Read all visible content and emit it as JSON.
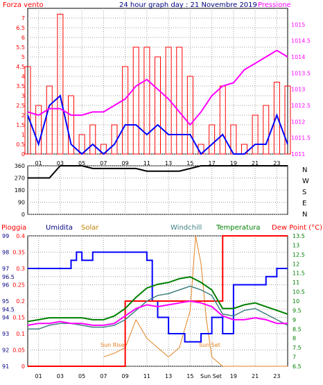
{
  "top_panel": {
    "title": "24 hour graph day : 21 Novembre 2019",
    "left_label": "Forza vento",
    "right_label": "Pressione"
  },
  "direction_panel": {
    "letters": [
      "N",
      "W",
      "S",
      "E",
      "N"
    ]
  },
  "bottom_panel": {
    "legend": {
      "pioggia": "Pioggia",
      "umidita": "Umidita",
      "solar": "Solar",
      "windchill": "Windchill",
      "temperatura": "Temperatura",
      "dewpoint": "Dew Point (°C)"
    },
    "sunrise": "Sun Rise",
    "sunset": "Sun Set"
  },
  "colors": {
    "wind_gust": "#ff0000",
    "wind_avg": "#0000ff",
    "pressure": "#ff00ff",
    "direction": "#000000",
    "rain": "#ff0000",
    "humidity": "#0000ff",
    "solar": "#e08020",
    "windchill": "#408080",
    "temperature": "#008000",
    "dewpoint": "#ff00ff",
    "grid": "#a0a0a0"
  },
  "chart_data": [
    {
      "type": "line",
      "name": "wind_pressure",
      "x_ticks": [
        "01",
        "03",
        "05",
        "07",
        "09",
        "11",
        "13",
        "15",
        "17",
        "19",
        "21",
        "23"
      ],
      "y_left": {
        "ylim": [
          0,
          7.5
        ],
        "ticks": [
          "0",
          "0.5",
          "1",
          "1.5",
          "2",
          "2.5",
          "3",
          "3.5",
          "4",
          "4.5",
          "5",
          "5.5",
          "6",
          "6.5",
          "7"
        ]
      },
      "y_right": {
        "ylim": [
          1011,
          1015.5
        ],
        "ticks": [
          "1011",
          "1011.5",
          "1012",
          "1012.5",
          "1013",
          "1013.5",
          "1014",
          "1014.5",
          "1015"
        ]
      },
      "series": [
        {
          "key": "gust",
          "x": [
            0,
            1,
            2,
            3,
            4,
            5,
            6,
            7,
            8,
            9,
            10,
            11,
            12,
            13,
            14,
            15,
            16,
            17,
            18,
            19,
            20,
            21,
            22,
            23,
            24
          ],
          "values": [
            4.5,
            2.5,
            3.5,
            7.2,
            3.0,
            1.0,
            1.5,
            0.5,
            1.5,
            4.5,
            5.5,
            5.5,
            5.0,
            5.5,
            5.5,
            4.0,
            0.5,
            1.5,
            3.5,
            1.5,
            0.5,
            2.0,
            2.5,
            3.7,
            3.5
          ]
        },
        {
          "key": "average",
          "x": [
            0,
            1,
            2,
            3,
            4,
            5,
            6,
            7,
            8,
            9,
            10,
            11,
            12,
            13,
            14,
            15,
            16,
            17,
            18,
            19,
            20,
            21,
            22,
            23,
            24
          ],
          "values": [
            2.0,
            0.5,
            2.5,
            3.0,
            0.5,
            0,
            0.5,
            0,
            0.5,
            1.5,
            1.5,
            1.0,
            1.5,
            1.0,
            1.0,
            1.0,
            0,
            0.5,
            1.0,
            0,
            0,
            0.5,
            0.5,
            2.0,
            0.5
          ]
        },
        {
          "key": "pressure",
          "x": [
            0,
            1,
            2,
            3,
            4,
            5,
            6,
            7,
            8,
            9,
            10,
            11,
            12,
            13,
            14,
            15,
            16,
            17,
            18,
            19,
            20,
            21,
            22,
            23,
            24
          ],
          "values": [
            1012.3,
            1012.2,
            1012.4,
            1012.4,
            1012.2,
            1012.2,
            1012.3,
            1012.3,
            1012.5,
            1012.7,
            1013.1,
            1013.3,
            1013.0,
            1012.7,
            1012.3,
            1011.9,
            1012.3,
            1012.8,
            1013.1,
            1013.2,
            1013.6,
            1013.8,
            1014.0,
            1014.2,
            1014.0
          ]
        }
      ]
    },
    {
      "type": "line",
      "name": "wind_direction",
      "y_ticks": [
        "0",
        "90",
        "180",
        "270",
        "360"
      ],
      "ylim": [
        0,
        360
      ],
      "series": [
        {
          "key": "direction",
          "x": [
            0,
            1,
            2,
            3,
            4,
            5,
            6,
            7,
            8,
            9,
            10,
            11,
            12,
            13,
            14,
            15,
            16,
            17,
            18,
            19,
            20,
            21,
            22,
            23,
            24
          ],
          "values": [
            270,
            270,
            270,
            360,
            360,
            360,
            340,
            340,
            340,
            340,
            340,
            320,
            320,
            320,
            320,
            340,
            360,
            360,
            360,
            360,
            360,
            360,
            360,
            360,
            360
          ]
        }
      ]
    },
    {
      "type": "line",
      "name": "weather",
      "x_ticks": [
        "01",
        "03",
        "05",
        "07",
        "09",
        "11",
        "13",
        "15",
        "19",
        "21",
        "23"
      ],
      "y_humidity": {
        "ylim": [
          91,
          99
        ],
        "ticks": [
          "91",
          "92",
          "93",
          "94",
          "94.5",
          "95",
          "96",
          "96.5",
          "97",
          "98",
          "99"
        ]
      },
      "y_rain": {
        "ylim": [
          0,
          0.4
        ],
        "ticks": [
          "0",
          "0.05",
          "0.1",
          "0.15",
          "0.2",
          "0.25",
          "0.3",
          "0.35",
          "0.4"
        ]
      },
      "y_temp": {
        "ylim": [
          6.5,
          13.5
        ],
        "ticks": [
          "6.5",
          "7",
          "7.5",
          "8",
          "8.5",
          "9",
          "9.5",
          "10",
          "10.5",
          "11",
          "11.5",
          "12",
          "12.5",
          "13",
          "13.5"
        ]
      },
      "series": [
        {
          "key": "humidity",
          "x": [
            0,
            2,
            3,
            4,
            4.5,
            5,
            6,
            8,
            10,
            11,
            11.5,
            12,
            13,
            14,
            14.5,
            15,
            16,
            17,
            18,
            19,
            20,
            21,
            22,
            23,
            24
          ],
          "values": [
            97,
            97,
            97,
            97.5,
            98,
            97.5,
            98,
            98,
            98,
            97.5,
            95,
            94,
            93,
            93,
            92.5,
            92.5,
            93,
            94,
            93,
            96,
            96,
            96,
            96.5,
            97,
            97
          ]
        },
        {
          "key": "rain",
          "x": [
            0,
            8,
            9,
            10,
            11,
            12,
            13,
            14,
            15,
            16,
            17,
            18,
            19,
            20,
            21,
            22,
            23,
            24
          ],
          "values": [
            0,
            0,
            0.2,
            0.2,
            0.2,
            0.2,
            0.2,
            0.2,
            0.2,
            0.2,
            0.2,
            0.4,
            0.4,
            0.4,
            0.4,
            0.4,
            0.4,
            0.4
          ]
        },
        {
          "key": "solar",
          "x": [
            7,
            8,
            9,
            10,
            11,
            12,
            13,
            14,
            15,
            15.5,
            16,
            16.5,
            17,
            18,
            19,
            20,
            21,
            22,
            23,
            24
          ],
          "values": [
            7.0,
            7.2,
            7.5,
            9.0,
            8.0,
            7.5,
            7.0,
            7.5,
            9.5,
            13.5,
            12.0,
            9.0,
            7.0,
            6.5,
            6.5,
            6.5,
            6.5,
            6.5,
            6.5,
            6.5
          ]
        },
        {
          "key": "windchill",
          "x": [
            0,
            1,
            2,
            3,
            4,
            5,
            6,
            7,
            8,
            9,
            10,
            11,
            12,
            13,
            14,
            15,
            16,
            17,
            18,
            19,
            20,
            21,
            22,
            23,
            24
          ],
          "values": [
            8.5,
            8.5,
            8.7,
            8.8,
            8.8,
            8.7,
            8.6,
            8.6,
            8.7,
            9.0,
            9.5,
            10.0,
            10.3,
            10.4,
            10.6,
            10.8,
            10.6,
            10.3,
            9.3,
            9.2,
            9.5,
            9.6,
            9.3,
            9.0,
            8.7
          ]
        },
        {
          "key": "temperature",
          "x": [
            0,
            1,
            2,
            3,
            4,
            5,
            6,
            7,
            8,
            9,
            10,
            11,
            12,
            13,
            14,
            15,
            16,
            17,
            18,
            19,
            20,
            21,
            22,
            23,
            24
          ],
          "values": [
            8.9,
            9.0,
            9.1,
            9.1,
            9.1,
            9.1,
            9.0,
            9.0,
            9.2,
            9.6,
            10.2,
            10.7,
            10.9,
            11.0,
            11.2,
            11.3,
            11.0,
            10.6,
            9.6,
            9.6,
            9.8,
            9.9,
            9.7,
            9.5,
            9.3
          ]
        },
        {
          "key": "dewpoint",
          "x": [
            0,
            1,
            2,
            3,
            4,
            5,
            6,
            7,
            8,
            9,
            10,
            11,
            12,
            13,
            14,
            15,
            16,
            17,
            18,
            19,
            20,
            21,
            22,
            23,
            24
          ],
          "values": [
            8.7,
            8.8,
            8.8,
            8.9,
            8.8,
            8.8,
            8.7,
            8.7,
            8.8,
            9.2,
            9.6,
            9.8,
            9.7,
            9.8,
            9.9,
            10.0,
            9.9,
            9.7,
            9.2,
            9.0,
            9.0,
            9.1,
            9.0,
            8.8,
            8.8
          ]
        }
      ]
    }
  ]
}
